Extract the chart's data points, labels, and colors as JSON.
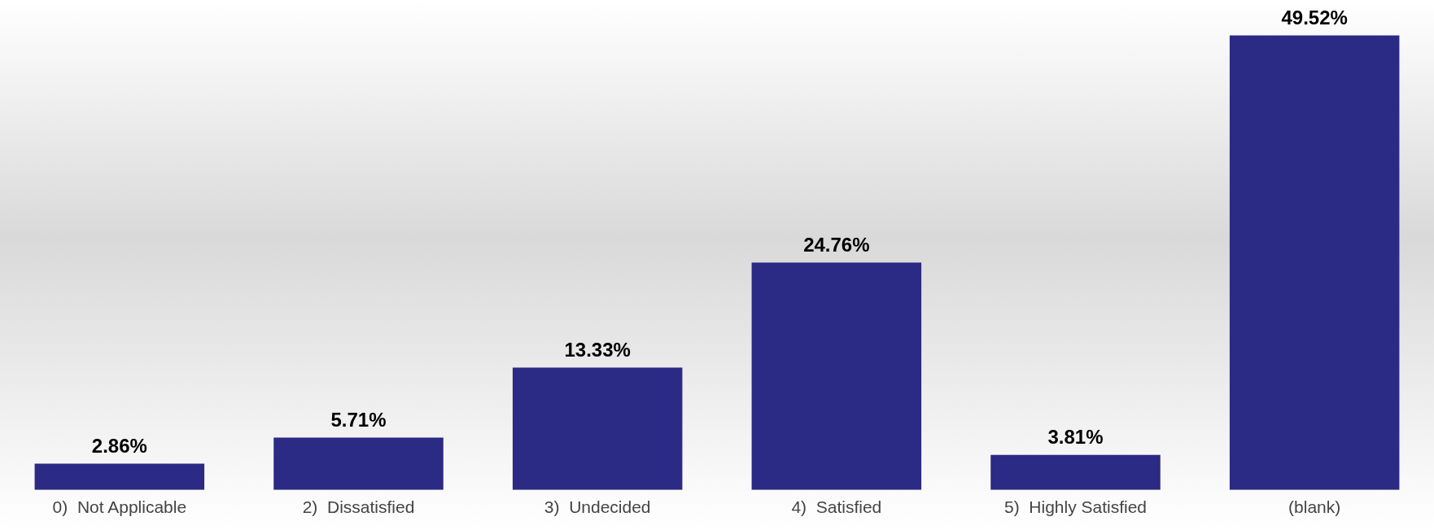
{
  "chart_data": {
    "type": "bar",
    "categories": [
      "0)  Not Applicable",
      "2)  Dissatisfied",
      "3)  Undecided",
      "4)  Satisfied",
      "5)  Highly Satisfied",
      "(blank)"
    ],
    "values": [
      2.86,
      5.71,
      13.33,
      24.76,
      3.81,
      49.52
    ],
    "value_labels": [
      "2.86%",
      "5.71%",
      "13.33%",
      "24.76%",
      "3.81%",
      "49.52%"
    ],
    "color": "#2b2a85",
    "grid": false,
    "legend": false
  }
}
